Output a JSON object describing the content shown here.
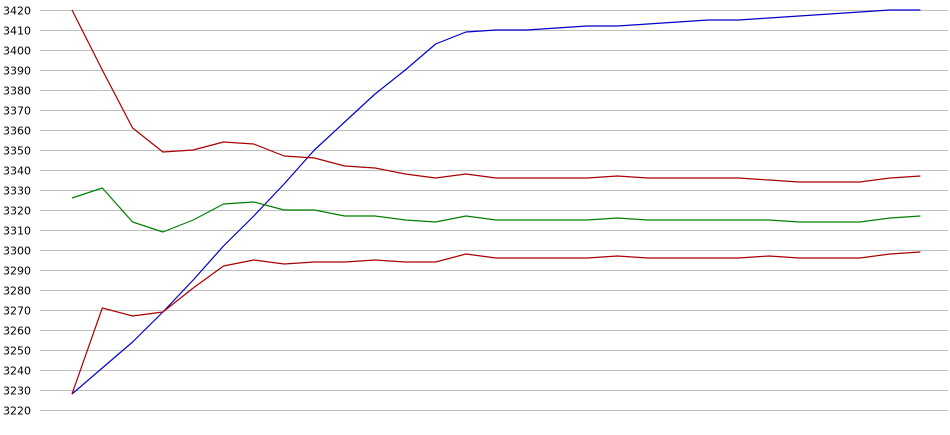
{
  "chart_data": {
    "type": "line",
    "title": "",
    "xlabel": "",
    "ylabel": "",
    "ylim": [
      3220,
      3420
    ],
    "yticks": [
      3220,
      3230,
      3240,
      3250,
      3260,
      3270,
      3280,
      3290,
      3300,
      3310,
      3320,
      3330,
      3340,
      3350,
      3360,
      3370,
      3380,
      3390,
      3400,
      3410,
      3420
    ],
    "x": [
      1,
      2,
      3,
      4,
      5,
      6,
      7,
      8,
      9,
      10,
      11,
      12,
      13,
      14,
      15,
      16,
      17,
      18,
      19,
      20,
      21,
      22,
      23,
      24,
      25,
      26,
      27,
      28,
      29
    ],
    "grid": "horizontal",
    "series": [
      {
        "color": "#0000cc",
        "values": [
          3228,
          3241,
          3254,
          3269,
          3285,
          3302,
          3317,
          3333,
          3350,
          3364,
          3378,
          3390,
          3403,
          3409,
          3410,
          3410,
          3411,
          3412,
          3412,
          3413,
          3414,
          3415,
          3415,
          3416,
          3417,
          3418,
          3419,
          3420,
          3420
        ]
      },
      {
        "color": "#aa0000",
        "values": [
          3420,
          3390,
          3361,
          3349,
          3350,
          3354,
          3353,
          3347,
          3346,
          3342,
          3341,
          3338,
          3336,
          3338,
          3336,
          3336,
          3336,
          3336,
          3337,
          3336,
          3336,
          3336,
          3336,
          3335,
          3334,
          3334,
          3334,
          3336,
          3337
        ]
      },
      {
        "color": "#008000",
        "values": [
          3326,
          3331,
          3314,
          3309,
          3315,
          3323,
          3324,
          3320,
          3320,
          3317,
          3317,
          3315,
          3314,
          3317,
          3315,
          3315,
          3315,
          3315,
          3316,
          3315,
          3315,
          3315,
          3315,
          3315,
          3314,
          3314,
          3314,
          3316,
          3317
        ]
      },
      {
        "color": "#aa0000",
        "values": [
          3228,
          3271,
          3267,
          3269,
          3281,
          3292,
          3295,
          3293,
          3294,
          3294,
          3295,
          3294,
          3294,
          3298,
          3296,
          3296,
          3296,
          3296,
          3297,
          3296,
          3296,
          3296,
          3296,
          3297,
          3296,
          3296,
          3296,
          3298,
          3299
        ]
      }
    ]
  }
}
